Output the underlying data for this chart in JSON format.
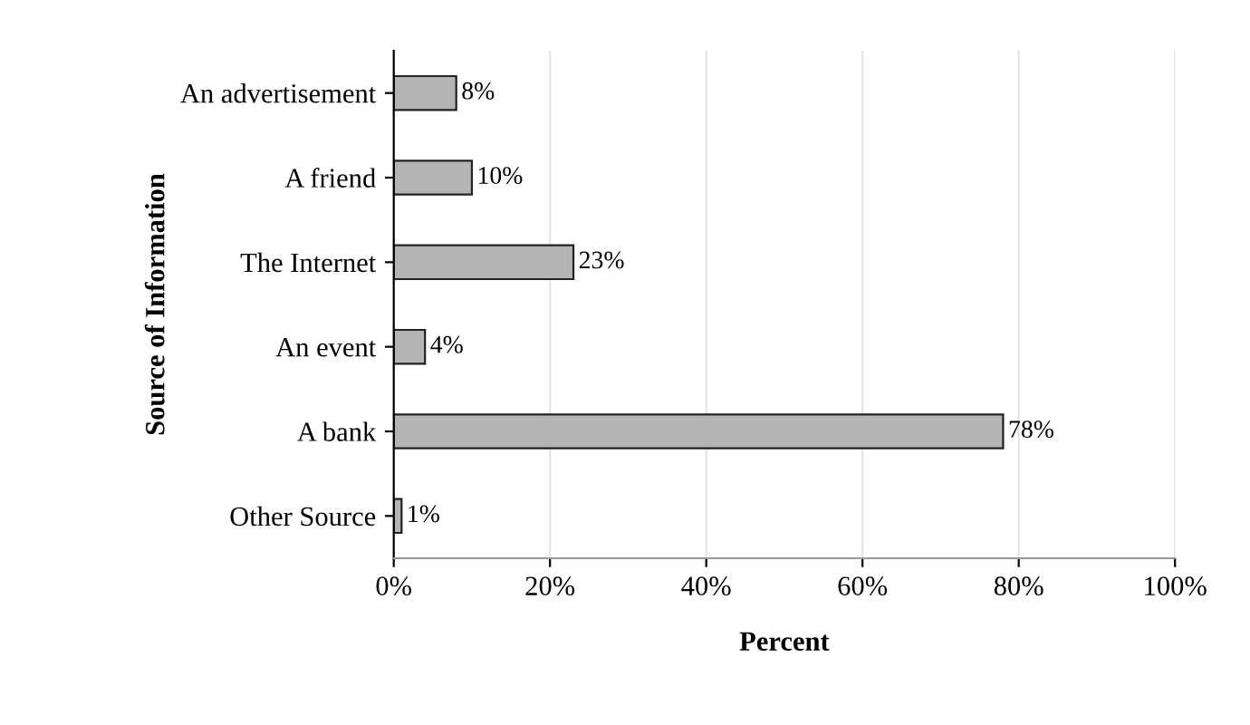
{
  "chart_data": {
    "type": "bar",
    "orientation": "horizontal",
    "categories": [
      "An advertisement",
      "A friend",
      "The Internet",
      "An event",
      "A bank",
      "Other Source"
    ],
    "values": [
      8,
      10,
      23,
      4,
      78,
      1
    ],
    "color": "#b4b4b4",
    "value_labels": [
      "8%",
      "10%",
      "23%",
      "4%",
      "78%",
      "1%"
    ],
    "xlabel": "Percent",
    "ylabel": "Source of Information",
    "xlim": [
      0,
      100
    ],
    "xticks": [
      {
        "value": 0,
        "label": "0%"
      },
      {
        "value": 20,
        "label": "20%"
      },
      {
        "value": 40,
        "label": "40%"
      },
      {
        "value": 60,
        "label": "60%"
      },
      {
        "value": 80,
        "label": "80%"
      },
      {
        "value": 100,
        "label": "100%"
      }
    ],
    "grid": "x"
  }
}
